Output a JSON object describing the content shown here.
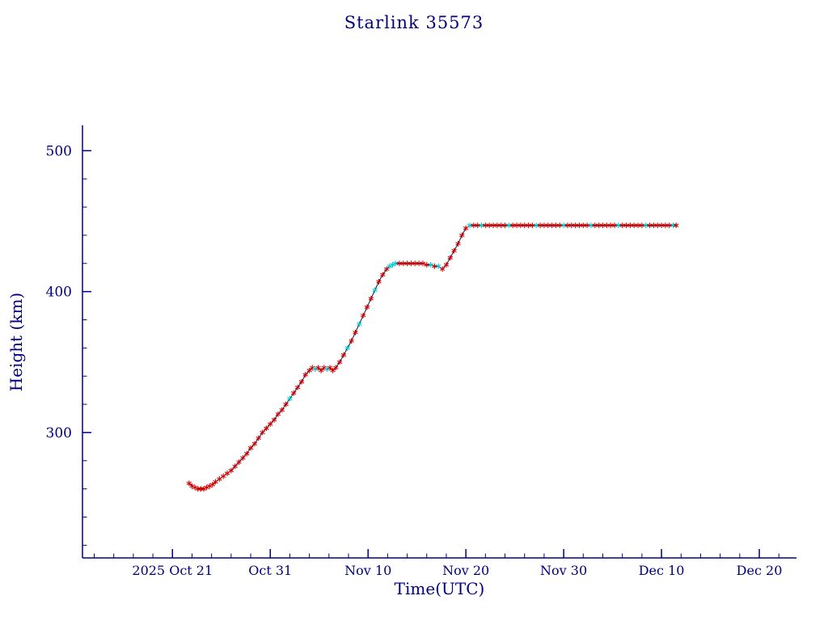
{
  "chart_data": {
    "type": "line",
    "title": "Starlink 35573",
    "xlabel": "Time(UTC)",
    "ylabel": "Height (km)",
    "x_unit": "days relative to 2025 Oct 21 00:00 UTC",
    "xlim": [
      -9.2,
      63.8
    ],
    "ylim": [
      211,
      518
    ],
    "grid": false,
    "legend": "none",
    "x_ticks": [
      {
        "pos": 0,
        "label": "2025 Oct 21"
      },
      {
        "pos": 10,
        "label": "Oct 31"
      },
      {
        "pos": 20,
        "label": "Nov 10"
      },
      {
        "pos": 30,
        "label": "Nov 20"
      },
      {
        "pos": 40,
        "label": "Nov 30"
      },
      {
        "pos": 50,
        "label": "Dec 10"
      },
      {
        "pos": 60,
        "label": "Dec 20"
      }
    ],
    "x_minor_step": 2,
    "y_ticks": [
      {
        "pos": 300,
        "label": "300"
      },
      {
        "pos": 400,
        "label": "400"
      },
      {
        "pos": 500,
        "label": "500"
      }
    ],
    "y_minor_step": 20,
    "colors": {
      "axis": "#000080",
      "text": "#000080",
      "line": "#101040",
      "marker_red": "#d40000",
      "marker_cyan": "#00cccc"
    },
    "marker_styles": {
      "r": "red asterisk",
      "c": "cyan asterisk"
    },
    "series": [
      {
        "name": "height_km",
        "points": [
          [
            1.7,
            264,
            "r"
          ],
          [
            2.0,
            262,
            "r"
          ],
          [
            2.3,
            261,
            "r"
          ],
          [
            2.6,
            260,
            "r"
          ],
          [
            2.9,
            260,
            "r"
          ],
          [
            3.2,
            260,
            "r"
          ],
          [
            3.5,
            261,
            "r"
          ],
          [
            3.8,
            262,
            "r"
          ],
          [
            4.1,
            263,
            "r"
          ],
          [
            4.4,
            265,
            "r"
          ],
          [
            4.8,
            267,
            "r"
          ],
          [
            5.2,
            269,
            "r"
          ],
          [
            5.6,
            271,
            "r"
          ],
          [
            6.0,
            273,
            "r"
          ],
          [
            6.4,
            276,
            "r"
          ],
          [
            6.8,
            279,
            "r"
          ],
          [
            7.2,
            282,
            "r"
          ],
          [
            7.6,
            285,
            "r"
          ],
          [
            8.0,
            289,
            "r"
          ],
          [
            8.4,
            292,
            "r"
          ],
          [
            8.8,
            296,
            "r"
          ],
          [
            9.2,
            300,
            "r"
          ],
          [
            9.6,
            303,
            "r"
          ],
          [
            10.0,
            306,
            "r"
          ],
          [
            10.4,
            309,
            "r"
          ],
          [
            10.8,
            313,
            "r"
          ],
          [
            11.2,
            316,
            "r"
          ],
          [
            11.6,
            320,
            "r"
          ],
          [
            12.0,
            324,
            "c"
          ],
          [
            12.4,
            328,
            "r"
          ],
          [
            12.8,
            332,
            "r"
          ],
          [
            13.2,
            336,
            "r"
          ],
          [
            13.6,
            341,
            "r"
          ],
          [
            14.0,
            344,
            "r"
          ],
          [
            14.3,
            346,
            "r"
          ],
          [
            14.6,
            345,
            "c"
          ],
          [
            14.9,
            346,
            "r"
          ],
          [
            15.2,
            344,
            "r"
          ],
          [
            15.5,
            346,
            "r"
          ],
          [
            15.8,
            345,
            "c"
          ],
          [
            16.1,
            346,
            "r"
          ],
          [
            16.4,
            344,
            "r"
          ],
          [
            16.7,
            346,
            "r"
          ],
          [
            17.1,
            350,
            "r"
          ],
          [
            17.5,
            355,
            "r"
          ],
          [
            17.9,
            360,
            "c"
          ],
          [
            18.3,
            365,
            "r"
          ],
          [
            18.7,
            371,
            "r"
          ],
          [
            19.1,
            377,
            "c"
          ],
          [
            19.5,
            383,
            "r"
          ],
          [
            19.9,
            389,
            "r"
          ],
          [
            20.3,
            395,
            "r"
          ],
          [
            20.7,
            401,
            "c"
          ],
          [
            21.1,
            407,
            "r"
          ],
          [
            21.5,
            412,
            "r"
          ],
          [
            21.9,
            416,
            "r"
          ],
          [
            22.2,
            418,
            "c"
          ],
          [
            22.5,
            419,
            "c"
          ],
          [
            22.8,
            420,
            "c"
          ],
          [
            23.2,
            420,
            "r"
          ],
          [
            23.6,
            420,
            "r"
          ],
          [
            24.0,
            420,
            "r"
          ],
          [
            24.4,
            420,
            "r"
          ],
          [
            24.8,
            420,
            "r"
          ],
          [
            25.2,
            420,
            "r"
          ],
          [
            25.6,
            420,
            "r"
          ],
          [
            26.0,
            419,
            "r"
          ],
          [
            26.4,
            419,
            "c"
          ],
          [
            26.8,
            418,
            "r"
          ],
          [
            27.2,
            418,
            "c"
          ],
          [
            27.6,
            416,
            "r"
          ],
          [
            28.0,
            419,
            "r"
          ],
          [
            28.4,
            424,
            "r"
          ],
          [
            28.8,
            429,
            "r"
          ],
          [
            29.2,
            434,
            "r"
          ],
          [
            29.6,
            440,
            "r"
          ],
          [
            30.0,
            445,
            "r"
          ],
          [
            30.4,
            447,
            "c"
          ],
          [
            30.8,
            447,
            "r"
          ],
          [
            31.2,
            447,
            "r"
          ],
          [
            31.6,
            447,
            "c"
          ],
          [
            32.0,
            447,
            "r"
          ],
          [
            32.4,
            447,
            "r"
          ],
          [
            32.8,
            447,
            "r"
          ],
          [
            33.2,
            447,
            "r"
          ],
          [
            33.6,
            447,
            "r"
          ],
          [
            34.0,
            447,
            "r"
          ],
          [
            34.4,
            447,
            "c"
          ],
          [
            34.8,
            447,
            "r"
          ],
          [
            35.2,
            447,
            "r"
          ],
          [
            35.6,
            447,
            "r"
          ],
          [
            36.0,
            447,
            "r"
          ],
          [
            36.4,
            447,
            "r"
          ],
          [
            36.8,
            447,
            "r"
          ],
          [
            37.2,
            447,
            "c"
          ],
          [
            37.6,
            447,
            "r"
          ],
          [
            38.0,
            447,
            "r"
          ],
          [
            38.4,
            447,
            "r"
          ],
          [
            38.8,
            447,
            "r"
          ],
          [
            39.2,
            447,
            "r"
          ],
          [
            39.6,
            447,
            "r"
          ],
          [
            40.0,
            447,
            "c"
          ],
          [
            40.4,
            447,
            "r"
          ],
          [
            40.8,
            447,
            "r"
          ],
          [
            41.2,
            447,
            "r"
          ],
          [
            41.6,
            447,
            "r"
          ],
          [
            42.0,
            447,
            "r"
          ],
          [
            42.4,
            447,
            "r"
          ],
          [
            42.8,
            447,
            "c"
          ],
          [
            43.2,
            447,
            "r"
          ],
          [
            43.6,
            447,
            "r"
          ],
          [
            44.0,
            447,
            "r"
          ],
          [
            44.4,
            447,
            "r"
          ],
          [
            44.8,
            447,
            "r"
          ],
          [
            45.2,
            447,
            "r"
          ],
          [
            45.6,
            447,
            "c"
          ],
          [
            46.0,
            447,
            "r"
          ],
          [
            46.4,
            447,
            "r"
          ],
          [
            46.8,
            447,
            "r"
          ],
          [
            47.2,
            447,
            "r"
          ],
          [
            47.6,
            447,
            "r"
          ],
          [
            48.0,
            447,
            "r"
          ],
          [
            48.4,
            447,
            "c"
          ],
          [
            48.8,
            447,
            "r"
          ],
          [
            49.2,
            447,
            "r"
          ],
          [
            49.6,
            447,
            "r"
          ],
          [
            50.0,
            447,
            "r"
          ],
          [
            50.4,
            447,
            "r"
          ],
          [
            50.8,
            447,
            "r"
          ],
          [
            51.2,
            447,
            "c"
          ],
          [
            51.5,
            447,
            "r"
          ]
        ]
      }
    ]
  }
}
